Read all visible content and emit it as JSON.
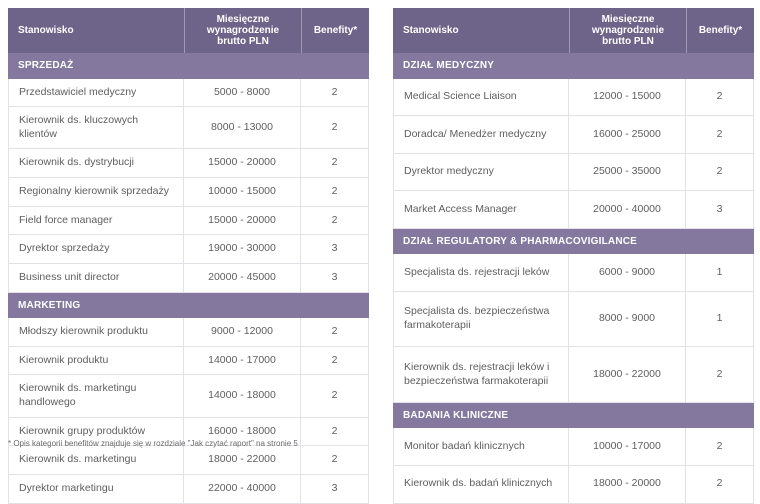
{
  "colors": {
    "header_bg": "#6e6388",
    "section_bg": "#84789f",
    "row_border": "#e3e1e8",
    "body_text": "#5e5e5e"
  },
  "columns": {
    "position": "Stanowisko",
    "salary": "Miesięczne wynagrodzenie brutto PLN",
    "benefits": "Benefity*"
  },
  "footnote": "* Opis kategorii benefitów znajduje się w rozdziale \"Jak czytać raport\" na stronie 5",
  "tables": [
    {
      "sections": [
        {
          "title": "SPRZEDAŻ",
          "rows": [
            {
              "position": "Przedstawiciel medyczny",
              "salary": "5000 - 8000",
              "benefits": "2"
            },
            {
              "position": "Kierownik ds. kluczowych klientów",
              "salary": "8000 - 13000",
              "benefits": "2"
            },
            {
              "position": "Kierownik ds. dystrybucji",
              "salary": "15000 - 20000",
              "benefits": "2"
            },
            {
              "position": "Regionalny kierownik sprzedaży",
              "salary": "10000 - 15000",
              "benefits": "2"
            },
            {
              "position": "Field force manager",
              "salary": "15000 - 20000",
              "benefits": "2"
            },
            {
              "position": "Dyrektor sprzedaży",
              "salary": "19000 - 30000",
              "benefits": "3"
            },
            {
              "position": "Business unit director",
              "salary": "20000 - 45000",
              "benefits": "3"
            }
          ]
        },
        {
          "title": "MARKETING",
          "rows": [
            {
              "position": "Młodszy kierownik produktu",
              "salary": "9000 - 12000",
              "benefits": "2"
            },
            {
              "position": "Kierownik produktu",
              "salary": "14000 - 17000",
              "benefits": "2"
            },
            {
              "position": "Kierownik ds. marketingu handlowego",
              "salary": "14000 - 18000",
              "benefits": "2"
            },
            {
              "position": "Kierownik grupy produktów",
              "salary": "16000 - 18000",
              "benefits": "2"
            },
            {
              "position": "Kierownik ds. marketingu",
              "salary": "18000 - 22000",
              "benefits": "2"
            },
            {
              "position": "Dyrektor marketingu",
              "salary": "22000 - 40000",
              "benefits": "3"
            }
          ]
        }
      ]
    },
    {
      "sections": [
        {
          "title": "DZIAŁ MEDYCZNY",
          "rows": [
            {
              "position": "Medical Science Liaison",
              "salary": "12000 - 15000",
              "benefits": "2"
            },
            {
              "position": "Doradca/ Menedżer medyczny",
              "salary": "16000 - 25000",
              "benefits": "2"
            },
            {
              "position": "Dyrektor medyczny",
              "salary": "25000 - 35000",
              "benefits": "2"
            },
            {
              "position": "Market Access Manager",
              "salary": "20000 - 40000",
              "benefits": "3"
            }
          ]
        },
        {
          "title": "DZIAŁ REGULATORY & PHARMACOVIGILANCE",
          "rows": [
            {
              "position": "Specjalista ds. rejestracji leków",
              "salary": "6000 - 9000",
              "benefits": "1"
            },
            {
              "position": "Specjalista ds. bezpieczeństwa farmakoterapii",
              "salary": "8000 - 9000",
              "benefits": "1"
            },
            {
              "position": "Kierownik ds. rejestracji leków i bezpieczeństwa farmakoterapii",
              "salary": "18000 - 22000",
              "benefits": "2"
            }
          ]
        },
        {
          "title": "BADANIA KLINICZNE",
          "rows": [
            {
              "position": "Monitor badań klinicznych",
              "salary": "10000 - 17000",
              "benefits": "2"
            },
            {
              "position": "Kierownik ds. badań klinicznych",
              "salary": "18000 - 20000",
              "benefits": "2"
            }
          ]
        }
      ]
    }
  ]
}
